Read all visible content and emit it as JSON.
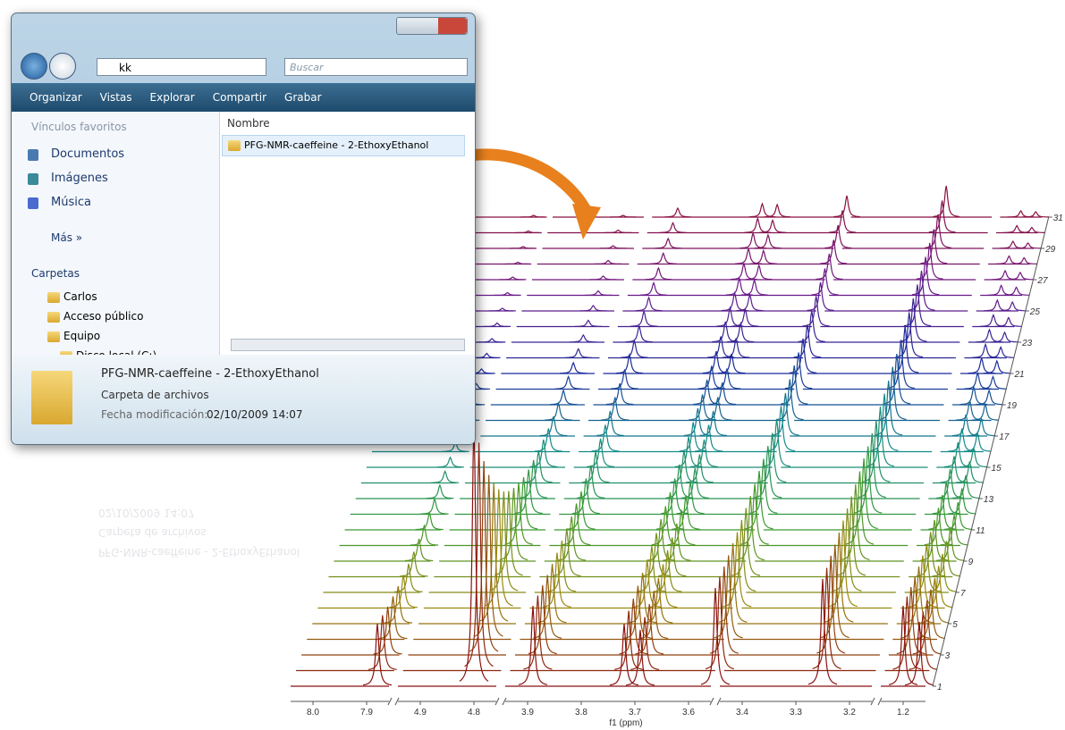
{
  "window": {
    "address": "kk",
    "search": "Buscar",
    "toolbar": [
      "Organizar",
      "Vistas",
      "Explorar",
      "Compartir",
      "Grabar"
    ],
    "favorites_title": "Vínculos favoritos",
    "favorites": [
      "Documentos",
      "Imágenes",
      "Música"
    ],
    "more": "Más",
    "folders_title": "Carpetas",
    "folders": [
      "Carlos",
      "Acceso público",
      "Equipo",
      "Disco local (C:)"
    ],
    "column": "Nombre",
    "file": "PFG-NMR-caeffeine - 2-EthoxyEthanol",
    "details": {
      "name": "PFG-NMR-caeffeine - 2-EthoxyEthanol",
      "kind": "Carpeta de archivos",
      "date_label": "Fecha modificación:",
      "date": "02/10/2009 14:07"
    }
  },
  "chart_data": {
    "type": "stacked-spectra",
    "xlabel": "f1 (ppm)",
    "xticks": [
      {
        "value": 8,
        "label": "8.0"
      },
      7.9,
      4.9,
      4.8,
      3.9,
      3.8,
      3.7,
      3.6,
      3.4,
      3.3,
      3.2,
      1.2
    ],
    "yticks": [
      1,
      3,
      5,
      7,
      9,
      11,
      13,
      15,
      17,
      19,
      21,
      23,
      25,
      27,
      29,
      31
    ],
    "color_stops": [
      "#8b1010",
      "#9a8a10",
      "#3a9a30",
      "#138a8a",
      "#1a2a9a",
      "#6a1a8a",
      "#8b1040"
    ],
    "series": [
      {
        "x": 7.88,
        "values": [
          70,
          62,
          54,
          48,
          42,
          37,
          32,
          28,
          25,
          22,
          19,
          17,
          15,
          13,
          11,
          10,
          9,
          8,
          7,
          6,
          5,
          5,
          4,
          4,
          3,
          3,
          3,
          2,
          2,
          2,
          2
        ]
      },
      {
        "x": 4.8,
        "values": [
          300,
          255,
          217,
          184,
          157,
          133,
          113,
          96,
          82,
          70,
          59,
          50,
          43,
          36,
          31,
          26,
          22,
          19,
          16,
          14,
          12,
          10,
          8,
          7,
          6,
          5,
          4,
          4,
          3,
          3,
          2
        ]
      },
      {
        "x": 3.89,
        "values": [
          90,
          84,
          78,
          72,
          67,
          62,
          58,
          54,
          50,
          47,
          43,
          40,
          37,
          35,
          32,
          30,
          28,
          26,
          24,
          22,
          21,
          19,
          18,
          17,
          15,
          14,
          13,
          12,
          11,
          11,
          10
        ]
      },
      {
        "x": 3.72,
        "values": [
          70,
          67,
          63,
          60,
          57,
          54,
          52,
          49,
          47,
          44,
          42,
          40,
          38,
          36,
          34,
          33,
          31,
          29,
          28,
          26,
          25,
          24,
          23,
          21,
          20,
          19,
          18,
          17,
          17,
          16,
          15
        ]
      },
      {
        "x": 3.69,
        "values": [
          63,
          60,
          57,
          54,
          51,
          49,
          47,
          44,
          42,
          40,
          38,
          36,
          34,
          32,
          31,
          30,
          28,
          26,
          25,
          23,
          22,
          22,
          21,
          19,
          18,
          17,
          16,
          15,
          15,
          14,
          14
        ]
      },
      {
        "x": 3.55,
        "values": [
          110,
          105,
          99,
          94,
          90,
          85,
          81,
          77,
          73,
          69,
          66,
          62,
          59,
          56,
          54,
          51,
          48,
          46,
          44,
          41,
          39,
          37,
          35,
          34,
          32,
          30,
          29,
          27,
          26,
          25,
          24
        ]
      },
      {
        "x": 3.25,
        "values": [
          120,
          115,
          111,
          106,
          102,
          98,
          94,
          90,
          86,
          83,
          80,
          76,
          73,
          70,
          68,
          65,
          62,
          60,
          57,
          55,
          53,
          51,
          49,
          47,
          45,
          43,
          41,
          39,
          38,
          36,
          35
        ]
      },
      {
        "x": 1.2,
        "values": [
          90,
          83,
          76,
          70,
          64,
          59,
          54,
          50,
          46,
          42,
          39,
          36,
          33,
          30,
          28,
          26,
          24,
          22,
          20,
          18,
          17,
          15,
          14,
          13,
          12,
          11,
          10,
          9,
          8,
          8,
          7
        ]
      },
      {
        "x": 1.17,
        "values": [
          72,
          66,
          61,
          56,
          51,
          47,
          43,
          40,
          37,
          34,
          31,
          29,
          26,
          24,
          22,
          21,
          19,
          18,
          16,
          14,
          14,
          12,
          11,
          10,
          10,
          9,
          8,
          7,
          6,
          6,
          6
        ]
      }
    ]
  }
}
